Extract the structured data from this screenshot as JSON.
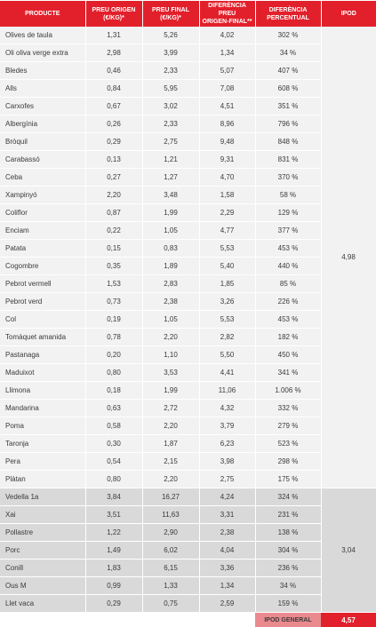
{
  "headers": [
    "PRODUCTE",
    "PREU ORIGEN (€/KG)*",
    "PREU FINAL (€/KG)*",
    "DIFERÈNCIA PREU ORIGEN-FINAL**",
    "DIFERÈNCIA PERCENTUAL",
    "IPOD"
  ],
  "header_lines": [
    [
      "PRODUCTE"
    ],
    [
      "PREU ORIGEN",
      "(€/KG)*"
    ],
    [
      "PREU FINAL",
      "(€/KG)*"
    ],
    [
      "DIFERÈNCIA PREU",
      "ORIGEN-FINAL**"
    ],
    [
      "DIFERÈNCIA",
      "PERCENTUAL"
    ],
    [
      "IPOD"
    ]
  ],
  "colors": {
    "header_bg": "#e2202b",
    "group1_bg": "#f2f2f2",
    "group2_bg": "#d9d9d9",
    "ipod_general_label_bg": "#e98a8e",
    "ipod_general_value_bg": "#e2202b"
  },
  "groups": [
    {
      "ipod": "4,98",
      "rows": [
        [
          "Olives de taula",
          "1,31",
          "5,26",
          "4,02",
          "302 %"
        ],
        [
          "Oli oliva verge extra",
          "2,98",
          "3,99",
          "1,34",
          "34 %"
        ],
        [
          "Bledes",
          "0,46",
          "2,33",
          "5,07",
          "407 %"
        ],
        [
          "Alls",
          "0,84",
          "5,95",
          "7,08",
          "608 %"
        ],
        [
          "Carxofes",
          "0,67",
          "3,02",
          "4,51",
          "351 %"
        ],
        [
          "Albergínia",
          "0,26",
          "2,33",
          "8,96",
          "796 %"
        ],
        [
          "Bròquil",
          "0,29",
          "2,75",
          "9,48",
          "848 %"
        ],
        [
          "Carabassó",
          "0,13",
          "1,21",
          "9,31",
          "831 %"
        ],
        [
          "Ceba",
          "0,27",
          "1,27",
          "4,70",
          "370 %"
        ],
        [
          "Xampinyó",
          "2,20",
          "3,48",
          "1,58",
          "58 %"
        ],
        [
          "Coliflor",
          "0,87",
          "1,99",
          "2,29",
          "129 %"
        ],
        [
          "Enciam",
          "0,22",
          "1,05",
          "4,77",
          "377 %"
        ],
        [
          "Patata",
          "0,15",
          "0,83",
          "5,53",
          "453 %"
        ],
        [
          "Cogombre",
          "0,35",
          "1,89",
          "5,40",
          "440 %"
        ],
        [
          "Pebrot vermell",
          "1,53",
          "2,83",
          "1,85",
          "85 %"
        ],
        [
          "Pebrot verd",
          "0,73",
          "2,38",
          "3,26",
          "226 %"
        ],
        [
          "Col",
          "0,19",
          "1,05",
          "5,53",
          "453 %"
        ],
        [
          "Tomàquet amanida",
          "0,78",
          "2,20",
          "2,82",
          "182 %"
        ],
        [
          "Pastanaga",
          "0,20",
          "1,10",
          "5,50",
          "450 %"
        ],
        [
          "Maduixot",
          "0,80",
          "3,53",
          "4,41",
          "341 %"
        ],
        [
          "Llimona",
          "0,18",
          "1,99",
          "11,06",
          "1.006 %"
        ],
        [
          "Mandarina",
          "0,63",
          "2,72",
          "4,32",
          "332 %"
        ],
        [
          "Poma",
          "0,58",
          "2,20",
          "3,79",
          "279 %"
        ],
        [
          "Taronja",
          "0,30",
          "1,87",
          "6,23",
          "523 %"
        ],
        [
          "Pera",
          "0,54",
          "2,15",
          "3,98",
          "298 %"
        ],
        [
          "Plàtan",
          "0,80",
          "2,20",
          "2,75",
          "175 %"
        ]
      ]
    },
    {
      "ipod": "3,04",
      "rows": [
        [
          "Vedella 1a",
          "3,84",
          "16,27",
          "4,24",
          "324 %"
        ],
        [
          "Xai",
          "3,51",
          "11,63",
          "3,31",
          "231 %"
        ],
        [
          "Pollastre",
          "1,22",
          "2,90",
          "2,38",
          "138 %"
        ],
        [
          "Porc",
          "1,49",
          "6,02",
          "4,04",
          "304 %"
        ],
        [
          "Conill",
          "1,83",
          "6,15",
          "3,36",
          "236 %"
        ],
        [
          "Ous M",
          "0,99",
          "1,33",
          "1,34",
          "34 %"
        ],
        [
          "Llet vaca",
          "0,29",
          "0,75",
          "2,59",
          "159 %"
        ]
      ]
    }
  ],
  "footer": {
    "label": "IPOD GENERAL",
    "value": "4,57"
  }
}
